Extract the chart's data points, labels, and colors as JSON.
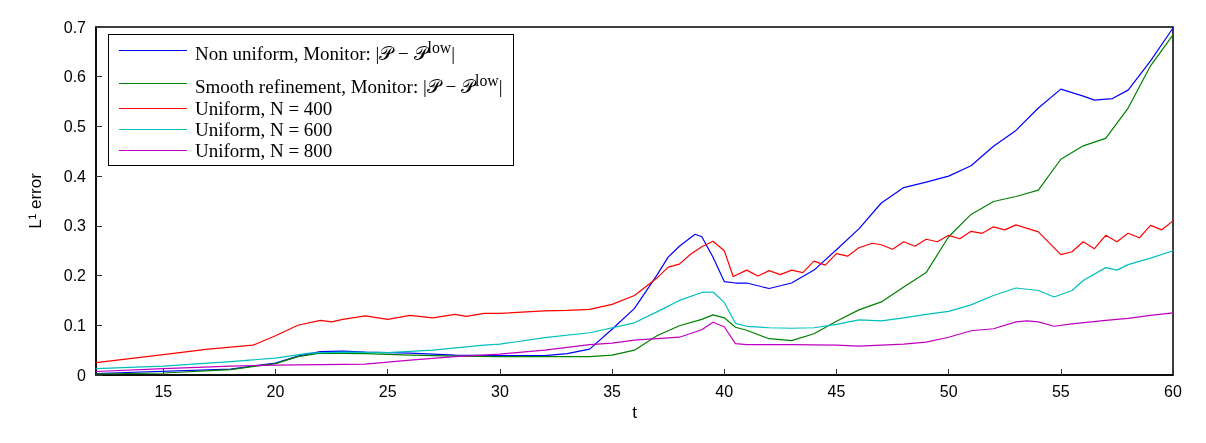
{
  "chart_data": {
    "type": "line",
    "xlabel": "t",
    "ylabel": "L¹ error",
    "xlim": [
      12,
      60
    ],
    "xticks": [
      15,
      20,
      25,
      30,
      35,
      40,
      45,
      50,
      55,
      60
    ],
    "ylim": [
      0,
      0.7
    ],
    "yticks": [
      0,
      0.1,
      0.2,
      0.3,
      0.4,
      0.5,
      0.6,
      0.7
    ],
    "grid": false,
    "legend": "top left",
    "marker": "none",
    "line_style": "solid",
    "series": [
      {
        "name": "Non uniform, Monitor: |𝒫 − 𝒫$^{low}$|",
        "color": "#0000ff",
        "x": [
          12,
          18,
          20,
          21,
          22,
          23,
          24,
          26,
          28,
          30,
          32,
          33,
          34,
          35,
          36,
          37,
          37.5,
          38,
          38.7,
          39,
          39.5,
          40,
          40.5,
          41,
          42,
          43,
          44,
          45,
          46,
          47,
          48,
          49,
          50,
          51,
          52,
          53,
          54,
          55,
          56,
          56.5,
          57.3,
          58,
          59,
          60
        ],
        "values": [
          0.003,
          0.012,
          0.024,
          0.038,
          0.047,
          0.048,
          0.046,
          0.044,
          0.04,
          0.039,
          0.039,
          0.043,
          0.052,
          0.092,
          0.134,
          0.201,
          0.237,
          0.259,
          0.283,
          0.278,
          0.237,
          0.188,
          0.185,
          0.185,
          0.174,
          0.185,
          0.211,
          0.252,
          0.294,
          0.346,
          0.377,
          0.388,
          0.4,
          0.421,
          0.46,
          0.492,
          0.537,
          0.575,
          0.561,
          0.553,
          0.556,
          0.573,
          0.632,
          0.698
        ]
      },
      {
        "name": "Smooth refinement, Monitor: |𝒫 − 𝒫$^{low}$|",
        "color": "#008000",
        "x": [
          12,
          15,
          18,
          20,
          21,
          22,
          24,
          26,
          28,
          30,
          33,
          34,
          35,
          36,
          37,
          38,
          39,
          39.5,
          40,
          40.5,
          41,
          42,
          43,
          44,
          45,
          46,
          47,
          48,
          49,
          50,
          51,
          52,
          53,
          54,
          55,
          56,
          57,
          58,
          59,
          60
        ],
        "values": [
          0.002,
          0.004,
          0.011,
          0.023,
          0.037,
          0.044,
          0.043,
          0.04,
          0.038,
          0.037,
          0.037,
          0.037,
          0.04,
          0.05,
          0.079,
          0.099,
          0.112,
          0.121,
          0.115,
          0.096,
          0.09,
          0.073,
          0.069,
          0.083,
          0.108,
          0.131,
          0.147,
          0.177,
          0.206,
          0.278,
          0.323,
          0.349,
          0.359,
          0.372,
          0.434,
          0.461,
          0.476,
          0.537,
          0.622,
          0.684
        ]
      },
      {
        "name": "Uniform, N = 400",
        "color": "#ff0000",
        "x": [
          12,
          15,
          17,
          19,
          20,
          21,
          22,
          22.5,
          23,
          24,
          25,
          26,
          27,
          28,
          28.5,
          29.3,
          30,
          32,
          33,
          34,
          35,
          36,
          37,
          37.5,
          38,
          38.5,
          39,
          39.5,
          40,
          40.4,
          41,
          41.5,
          42,
          42.5,
          43,
          43.5,
          44,
          44.5,
          45,
          45.5,
          46,
          46.6,
          47,
          47.5,
          48,
          48.5,
          49,
          49.5,
          50,
          50.5,
          51,
          51.5,
          52,
          52.5,
          53,
          54,
          55,
          55.5,
          56,
          56.5,
          57,
          57.5,
          58,
          58.5,
          59,
          59.5,
          60
        ],
        "values": [
          0.025,
          0.041,
          0.052,
          0.06,
          0.079,
          0.1,
          0.11,
          0.107,
          0.112,
          0.119,
          0.112,
          0.12,
          0.115,
          0.122,
          0.118,
          0.124,
          0.124,
          0.129,
          0.13,
          0.132,
          0.142,
          0.16,
          0.195,
          0.217,
          0.223,
          0.243,
          0.258,
          0.269,
          0.25,
          0.198,
          0.211,
          0.199,
          0.21,
          0.202,
          0.211,
          0.206,
          0.229,
          0.221,
          0.244,
          0.239,
          0.256,
          0.265,
          0.262,
          0.253,
          0.268,
          0.259,
          0.273,
          0.268,
          0.281,
          0.274,
          0.289,
          0.285,
          0.298,
          0.292,
          0.302,
          0.288,
          0.242,
          0.248,
          0.268,
          0.254,
          0.281,
          0.268,
          0.285,
          0.276,
          0.301,
          0.292,
          0.31
        ]
      },
      {
        "name": "Uniform, N = 600",
        "color": "#00bfbf",
        "x": [
          12,
          15,
          18,
          20,
          21.5,
          23,
          25,
          27,
          29.3,
          30,
          32,
          34,
          36,
          37,
          38,
          39,
          39.5,
          40,
          40.5,
          41,
          42,
          43,
          44,
          45,
          46,
          47,
          48,
          49,
          50,
          51,
          52,
          53,
          54,
          54.7,
          55.5,
          56,
          57,
          57.5,
          58,
          59,
          60
        ],
        "values": [
          0.013,
          0.018,
          0.027,
          0.034,
          0.044,
          0.046,
          0.045,
          0.05,
          0.06,
          0.062,
          0.075,
          0.085,
          0.105,
          0.127,
          0.15,
          0.166,
          0.167,
          0.146,
          0.104,
          0.098,
          0.095,
          0.094,
          0.095,
          0.102,
          0.111,
          0.109,
          0.115,
          0.122,
          0.128,
          0.141,
          0.16,
          0.175,
          0.17,
          0.157,
          0.17,
          0.19,
          0.216,
          0.211,
          0.222,
          0.235,
          0.25
        ]
      },
      {
        "name": "Uniform, N = 800",
        "color": "#bf00bf",
        "x": [
          12,
          15,
          18,
          20,
          22,
          24,
          26,
          28,
          30,
          32,
          34,
          35,
          36,
          37,
          38,
          39,
          39.5,
          40,
          40.5,
          41,
          43,
          45,
          46,
          47,
          48,
          49,
          50,
          51,
          52,
          53,
          53.5,
          54,
          54.7,
          55.5,
          57,
          58,
          59,
          60
        ],
        "values": [
          0.007,
          0.013,
          0.018,
          0.02,
          0.021,
          0.022,
          0.03,
          0.037,
          0.042,
          0.05,
          0.061,
          0.064,
          0.07,
          0.073,
          0.076,
          0.091,
          0.106,
          0.097,
          0.063,
          0.061,
          0.061,
          0.06,
          0.058,
          0.06,
          0.062,
          0.066,
          0.076,
          0.089,
          0.093,
          0.107,
          0.109,
          0.107,
          0.098,
          0.103,
          0.11,
          0.114,
          0.12,
          0.125
        ]
      }
    ]
  }
}
